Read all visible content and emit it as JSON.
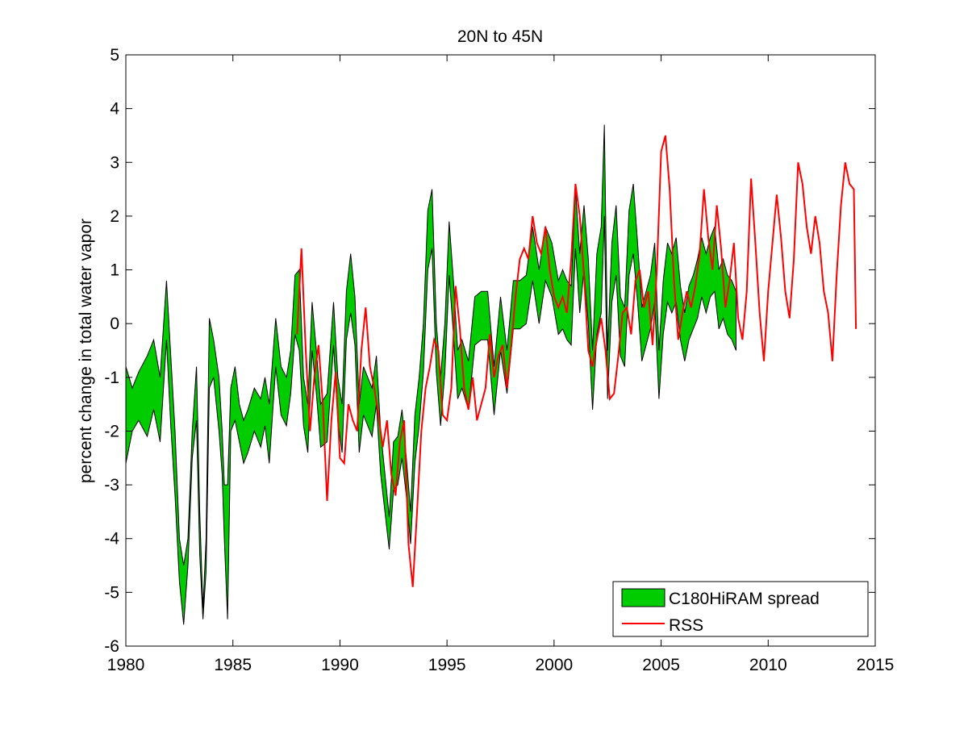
{
  "chart_data": {
    "type": "area",
    "title": "20N to 45N",
    "xlabel": "",
    "ylabel": "percent change in total water vapor",
    "xlim": [
      1980,
      2015
    ],
    "ylim": [
      -6,
      5
    ],
    "xticks": [
      1980,
      1985,
      1990,
      1995,
      2000,
      2005,
      2010,
      2015
    ],
    "yticks": [
      -6,
      -5,
      -4,
      -3,
      -2,
      -1,
      0,
      1,
      2,
      3,
      4,
      5
    ],
    "grid": false,
    "legend_position": "bottom-right",
    "series": [
      {
        "name": "C180HiRAM spread",
        "kind": "band",
        "color": "#00cc00",
        "edge_color": "#000000",
        "x": [
          1980.0,
          1980.3,
          1980.6,
          1981.0,
          1981.3,
          1981.6,
          1981.9,
          1982.1,
          1982.3,
          1982.5,
          1982.7,
          1982.9,
          1983.1,
          1983.3,
          1983.45,
          1983.6,
          1983.75,
          1983.9,
          1984.1,
          1984.35,
          1984.5,
          1984.6,
          1984.75,
          1984.9,
          1985.1,
          1985.3,
          1985.5,
          1985.7,
          1986.0,
          1986.3,
          1986.5,
          1986.7,
          1987.0,
          1987.25,
          1987.5,
          1987.7,
          1987.9,
          1988.1,
          1988.3,
          1988.5,
          1988.7,
          1988.9,
          1989.1,
          1989.4,
          1989.7,
          1989.9,
          1990.1,
          1990.3,
          1990.5,
          1990.7,
          1990.9,
          1991.1,
          1991.3,
          1991.5,
          1991.7,
          1991.9,
          1992.1,
          1992.3,
          1992.5,
          1992.7,
          1992.9,
          1993.1,
          1993.3,
          1993.5,
          1993.7,
          1993.9,
          1994.1,
          1994.3,
          1994.5,
          1994.7,
          1994.9,
          1995.1,
          1995.3,
          1995.5,
          1995.7,
          1996.0,
          1996.3,
          1996.6,
          1996.9,
          1997.2,
          1997.5,
          1997.8,
          1998.1,
          1998.4,
          1998.7,
          1999.0,
          1999.3,
          1999.6,
          1999.9,
          2000.2,
          2000.4,
          2000.6,
          2000.8,
          2001.0,
          2001.2,
          2001.4,
          2001.6,
          2001.8,
          2002.0,
          2002.2,
          2002.35,
          2002.5,
          2002.7,
          2002.9,
          2003.1,
          2003.3,
          2003.5,
          2003.7,
          2003.9,
          2004.1,
          2004.3,
          2004.5,
          2004.7,
          2004.9,
          2005.1,
          2005.3,
          2005.5,
          2005.7,
          2005.9,
          2006.1,
          2006.3,
          2006.5,
          2006.7,
          2006.9,
          2007.1,
          2007.3,
          2007.5,
          2007.7,
          2007.9,
          2008.1,
          2008.3,
          2008.5
        ],
        "upper": [
          -0.8,
          -1.2,
          -0.9,
          -0.6,
          -0.3,
          -1.0,
          0.8,
          -0.6,
          -2.0,
          -4.0,
          -4.5,
          -4.0,
          -2.0,
          -0.8,
          -3.5,
          -5.3,
          -4.0,
          0.1,
          -0.3,
          -1.0,
          -2.0,
          -3.0,
          -3.0,
          -1.2,
          -0.8,
          -1.5,
          -1.8,
          -1.6,
          -1.2,
          -1.4,
          -1.0,
          -1.5,
          0.1,
          -0.8,
          -1.0,
          -0.5,
          0.9,
          1.0,
          -1.0,
          -1.5,
          0.4,
          -0.5,
          -1.5,
          -1.3,
          0.4,
          -1.0,
          -1.5,
          0.6,
          1.3,
          0.5,
          -1.5,
          -0.8,
          -1.0,
          -1.2,
          -0.6,
          -2.0,
          -2.8,
          -3.6,
          -2.2,
          -2.1,
          -1.6,
          -2.5,
          -3.5,
          -1.7,
          -1.0,
          0.0,
          2.1,
          2.5,
          0.0,
          -1.0,
          0.0,
          1.9,
          0.8,
          -0.5,
          -0.3,
          -0.7,
          0.5,
          0.6,
          0.6,
          -0.8,
          0.5,
          -0.5,
          0.8,
          0.8,
          0.9,
          1.8,
          1.0,
          1.8,
          1.5,
          0.8,
          1.0,
          0.8,
          0.7,
          2.5,
          1.3,
          2.2,
          1.2,
          -0.5,
          1.3,
          1.8,
          3.7,
          -0.5,
          1.5,
          2.2,
          0.5,
          0.3,
          2.1,
          2.6,
          1.5,
          0.3,
          0.6,
          0.9,
          1.5,
          -0.5,
          0.8,
          1.5,
          1.3,
          1.6,
          0.7,
          0.2,
          0.7,
          0.9,
          1.2,
          1.6,
          1.3,
          1.6,
          1.8,
          1.0,
          1.2,
          0.9,
          0.8,
          0.6
        ],
        "lower": [
          -2.6,
          -2.0,
          -1.8,
          -2.1,
          -1.6,
          -2.2,
          -0.3,
          -1.9,
          -3.2,
          -4.8,
          -5.6,
          -4.5,
          -2.5,
          -1.8,
          -4.3,
          -5.5,
          -4.6,
          -1.2,
          -1.0,
          -2.0,
          -2.8,
          -4.0,
          -5.5,
          -2.0,
          -1.8,
          -2.2,
          -2.6,
          -2.4,
          -2.0,
          -2.3,
          -1.9,
          -2.6,
          -0.8,
          -1.7,
          -1.9,
          -1.3,
          -0.2,
          -0.5,
          -1.9,
          -2.4,
          -0.5,
          -1.3,
          -2.3,
          -2.2,
          -0.4,
          -1.8,
          -2.4,
          -0.3,
          0.2,
          -0.4,
          -2.4,
          -1.7,
          -1.9,
          -2.1,
          -1.5,
          -2.8,
          -3.5,
          -4.2,
          -3.1,
          -3.0,
          -2.5,
          -3.2,
          -4.1,
          -2.6,
          -1.9,
          -0.9,
          1.0,
          1.4,
          -0.9,
          -1.9,
          -0.9,
          0.9,
          -0.2,
          -1.4,
          -1.2,
          -1.6,
          -0.4,
          -0.3,
          -0.3,
          -1.7,
          -0.5,
          -1.3,
          -0.1,
          -0.1,
          0.0,
          0.8,
          0.0,
          0.8,
          0.5,
          -0.2,
          -0.1,
          -0.3,
          -0.4,
          1.4,
          0.2,
          1.0,
          0.0,
          -1.6,
          -0.2,
          0.2,
          2.0,
          -1.4,
          0.4,
          0.9,
          -0.6,
          -0.8,
          0.9,
          1.3,
          0.4,
          -0.7,
          -0.4,
          -0.1,
          0.4,
          -1.4,
          -0.2,
          0.4,
          0.2,
          0.4,
          -0.3,
          -0.7,
          -0.3,
          -0.1,
          0.1,
          0.5,
          0.2,
          0.5,
          0.6,
          -0.1,
          0.1,
          -0.2,
          -0.3,
          -0.5
        ]
      },
      {
        "name": "RSS",
        "kind": "line",
        "color": "#ff0000",
        "x": [
          1988.0,
          1988.2,
          1988.4,
          1988.6,
          1988.8,
          1989.0,
          1989.2,
          1989.4,
          1989.6,
          1989.8,
          1990.0,
          1990.2,
          1990.4,
          1990.6,
          1990.8,
          1991.0,
          1991.2,
          1991.4,
          1991.6,
          1991.8,
          1992.0,
          1992.2,
          1992.4,
          1992.6,
          1992.8,
          1993.0,
          1993.2,
          1993.4,
          1993.6,
          1993.8,
          1994.0,
          1994.2,
          1994.4,
          1994.6,
          1994.8,
          1995.0,
          1995.2,
          1995.4,
          1995.6,
          1995.8,
          1996.0,
          1996.2,
          1996.4,
          1996.6,
          1996.8,
          1997.0,
          1997.2,
          1997.4,
          1997.6,
          1997.8,
          1998.0,
          1998.2,
          1998.4,
          1998.6,
          1998.8,
          1999.0,
          1999.2,
          1999.4,
          1999.6,
          1999.8,
          2000.0,
          2000.2,
          2000.4,
          2000.6,
          2000.8,
          2001.0,
          2001.2,
          2001.4,
          2001.6,
          2001.8,
          2002.0,
          2002.2,
          2002.4,
          2002.6,
          2002.8,
          2003.0,
          2003.2,
          2003.4,
          2003.6,
          2003.8,
          2004.0,
          2004.2,
          2004.4,
          2004.6,
          2004.8,
          2005.0,
          2005.2,
          2005.4,
          2005.6,
          2005.8,
          2006.0,
          2006.2,
          2006.4,
          2006.6,
          2006.8,
          2007.0,
          2007.2,
          2007.4,
          2007.6,
          2007.8,
          2008.0,
          2008.2,
          2008.4,
          2008.6,
          2008.8,
          2009.0,
          2009.2,
          2009.4,
          2009.6,
          2009.8,
          2010.0,
          2010.2,
          2010.4,
          2010.6,
          2010.8,
          2011.0,
          2011.2,
          2011.4,
          2011.6,
          2011.8,
          2012.0,
          2012.2,
          2012.4,
          2012.6,
          2012.8,
          2013.0,
          2013.2,
          2013.4,
          2013.6,
          2013.8,
          2014.0,
          2014.1
        ],
        "y": [
          -0.2,
          1.4,
          -0.5,
          -2.0,
          -1.0,
          -0.4,
          -1.5,
          -3.3,
          -1.8,
          -0.9,
          -2.5,
          -2.6,
          -1.5,
          -1.8,
          -2.0,
          -0.5,
          0.3,
          -0.8,
          -1.2,
          -1.7,
          -2.3,
          -1.8,
          -2.8,
          -3.2,
          -2.2,
          -1.8,
          -4.1,
          -4.9,
          -3.5,
          -2.0,
          -1.2,
          -0.8,
          -0.3,
          -0.5,
          -1.7,
          -1.8,
          -1.2,
          0.7,
          -0.1,
          -1.2,
          -1.6,
          -1.0,
          -1.8,
          -1.5,
          -1.2,
          -0.2,
          -1.0,
          -0.6,
          -0.4,
          -1.2,
          -0.4,
          0.5,
          1.2,
          1.4,
          1.2,
          2.0,
          1.5,
          1.3,
          1.8,
          1.0,
          0.5,
          0.3,
          0.5,
          0.2,
          1.2,
          2.6,
          2.0,
          0.9,
          -0.5,
          -0.8,
          -0.3,
          0.1,
          -0.5,
          -1.4,
          -1.3,
          -0.6,
          0.2,
          0.3,
          -0.2,
          0.8,
          1.0,
          0.3,
          0.6,
          -0.4,
          1.0,
          3.2,
          3.5,
          2.5,
          0.8,
          -0.3,
          0.2,
          0.6,
          0.3,
          0.7,
          1.3,
          2.5,
          1.6,
          1.0,
          2.2,
          1.4,
          0.3,
          0.8,
          1.5,
          0.1,
          -0.3,
          0.6,
          2.7,
          1.5,
          0.2,
          -0.7,
          0.6,
          1.5,
          2.4,
          1.6,
          0.6,
          0.1,
          1.2,
          3.0,
          2.6,
          1.8,
          1.3,
          2.0,
          1.5,
          0.6,
          0.2,
          -0.7,
          0.9,
          2.2,
          3.0,
          2.6,
          2.5,
          -0.1
        ]
      }
    ]
  }
}
